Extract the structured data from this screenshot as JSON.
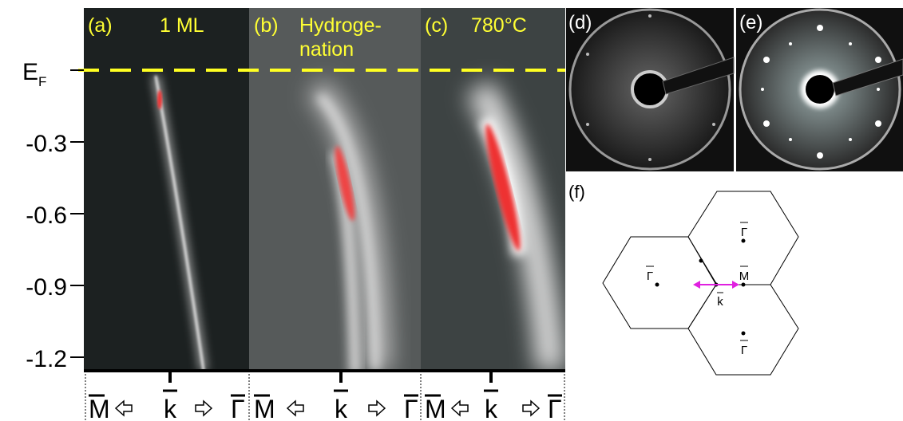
{
  "arpes": {
    "panel_labels": [
      "(a)",
      "(b)",
      "(c)"
    ],
    "titles": [
      [
        "1 ML"
      ],
      [
        "Hydroge-",
        "nation"
      ],
      [
        "780°C"
      ]
    ],
    "energy_axis": {
      "fermi": {
        "main": "E",
        "sub": "F"
      },
      "ticks": [
        "-0.3",
        "-0.6",
        "-0.9",
        "-1.2"
      ]
    },
    "momentum_labels": [
      [
        "M",
        "k",
        "Γ"
      ],
      [
        "M",
        "k",
        "Γ"
      ],
      [
        "M",
        "k",
        "Γ"
      ]
    ]
  },
  "leed": {
    "panel_labels": [
      "(d)",
      "(e)"
    ]
  },
  "brillouin_zone": {
    "panel_label": "(f)",
    "points": [
      "Γ",
      "M",
      "k",
      "Γ",
      "Γ"
    ]
  }
}
